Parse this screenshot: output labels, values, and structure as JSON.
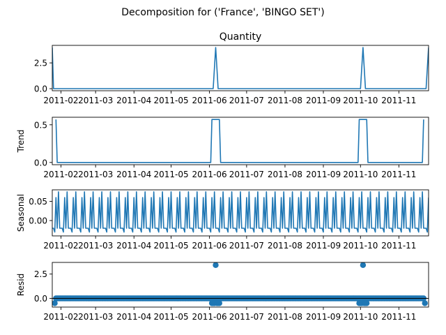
{
  "figure": {
    "suptitle": "Decomposition for ('France', 'BINGO SET')"
  },
  "colors": {
    "series": "#1f77b4",
    "axes": "#000000",
    "background": "#ffffff"
  },
  "chart_data": [
    {
      "type": "line",
      "title": "Quantity",
      "ylabel": "",
      "x_range": [
        "2011-01-25",
        "2011-11-25"
      ],
      "ylim": [
        -0.2,
        4.2
      ],
      "yticks": [
        0.0,
        2.5
      ],
      "ytick_labels": [
        "0.0",
        "2.5"
      ],
      "xticks": [
        "2011-02-01",
        "2011-03-01",
        "2011-04-01",
        "2011-05-01",
        "2011-06-01",
        "2011-07-01",
        "2011-08-01",
        "2011-09-01",
        "2011-10-01",
        "2011-11-01"
      ],
      "xtick_labels": [
        "2011-02",
        "2011-03",
        "2011-04",
        "2011-05",
        "2011-06",
        "2011-07",
        "2011-08",
        "2011-09",
        "2011-10",
        "2011-11"
      ],
      "series": [
        {
          "x": [
            "2011-01-25",
            "2011-01-26",
            "2011-06-04",
            "2011-06-06",
            "2011-06-08",
            "2011-10-01",
            "2011-10-03",
            "2011-10-05",
            "2011-11-23",
            "2011-11-25"
          ],
          "y": [
            4,
            0,
            0,
            4,
            0,
            0,
            4,
            0,
            0,
            4
          ]
        }
      ]
    },
    {
      "type": "line",
      "title": "",
      "ylabel": "Trend",
      "x_range": [
        "2011-01-25",
        "2011-11-25"
      ],
      "ylim": [
        -0.03,
        0.6
      ],
      "yticks": [
        0.0,
        0.5
      ],
      "ytick_labels": [
        "0.0",
        "0.5"
      ],
      "xticks": [
        "2011-02-01",
        "2011-03-01",
        "2011-04-01",
        "2011-05-01",
        "2011-06-01",
        "2011-07-01",
        "2011-08-01",
        "2011-09-01",
        "2011-10-01",
        "2011-11-01"
      ],
      "xtick_labels": [
        "2011-02",
        "2011-03",
        "2011-04",
        "2011-05",
        "2011-06",
        "2011-07",
        "2011-08",
        "2011-09",
        "2011-10",
        "2011-11"
      ],
      "series": [
        {
          "x": [
            "2011-01-28",
            "2011-01-29",
            "2011-06-02",
            "2011-06-03",
            "2011-06-09",
            "2011-06-10",
            "2011-09-29",
            "2011-09-30",
            "2011-10-06",
            "2011-10-07",
            "2011-11-20",
            "2011-11-21"
          ],
          "y": [
            0.57,
            0,
            0,
            0.57,
            0.57,
            0,
            0,
            0.57,
            0.57,
            0,
            0,
            0.57
          ]
        }
      ]
    },
    {
      "type": "line",
      "title": "",
      "ylabel": "Seasonal",
      "x_range": [
        "2011-01-25",
        "2011-11-25"
      ],
      "ylim": [
        -0.04,
        0.08
      ],
      "yticks": [
        0.0,
        0.05
      ],
      "ytick_labels": [
        "0.00",
        "0.05"
      ],
      "xticks": [
        "2011-02-01",
        "2011-03-01",
        "2011-04-01",
        "2011-05-01",
        "2011-06-01",
        "2011-07-01",
        "2011-08-01",
        "2011-09-01",
        "2011-10-01",
        "2011-11-01"
      ],
      "xtick_labels": [
        "2011-02",
        "2011-03",
        "2011-04",
        "2011-05",
        "2011-06",
        "2011-07",
        "2011-08",
        "2011-09",
        "2011-10",
        "2011-11"
      ],
      "series": [
        {
          "start": "2011-01-25",
          "end": "2011-11-25",
          "period_days": 7,
          "pattern": [
            -0.02,
            -0.02,
            -0.03,
            0.06,
            -0.02,
            0.075,
            -0.02
          ]
        }
      ]
    },
    {
      "type": "scatter",
      "title": "",
      "ylabel": "Resid",
      "x_range": [
        "2011-01-25",
        "2011-11-25"
      ],
      "ylim": [
        -0.9,
        3.7
      ],
      "yticks": [
        0.0,
        2.5
      ],
      "ytick_labels": [
        "0.0",
        "2.5"
      ],
      "xticks": [
        "2011-02-01",
        "2011-03-01",
        "2011-04-01",
        "2011-05-01",
        "2011-06-01",
        "2011-07-01",
        "2011-08-01",
        "2011-09-01",
        "2011-10-01",
        "2011-11-01"
      ],
      "xtick_labels": [
        "2011-02",
        "2011-03",
        "2011-04",
        "2011-05",
        "2011-06",
        "2011-07",
        "2011-08",
        "2011-09",
        "2011-10",
        "2011-11"
      ],
      "baseline": 0,
      "baseline_dates": {
        "start": "2011-01-28",
        "end": "2011-11-21"
      },
      "series": [
        {
          "x": [
            "2011-01-27",
            "2011-06-03",
            "2011-06-04",
            "2011-06-05",
            "2011-06-06",
            "2011-06-07",
            "2011-06-08",
            "2011-06-09",
            "2011-09-30",
            "2011-10-01",
            "2011-10-02",
            "2011-10-03",
            "2011-10-04",
            "2011-10-05",
            "2011-10-06",
            "2011-11-22"
          ],
          "y": [
            -0.5,
            -0.5,
            -0.5,
            -0.5,
            3.43,
            -0.5,
            -0.5,
            -0.5,
            -0.5,
            -0.5,
            -0.5,
            3.43,
            -0.5,
            -0.5,
            -0.5,
            -0.5
          ]
        }
      ]
    }
  ]
}
